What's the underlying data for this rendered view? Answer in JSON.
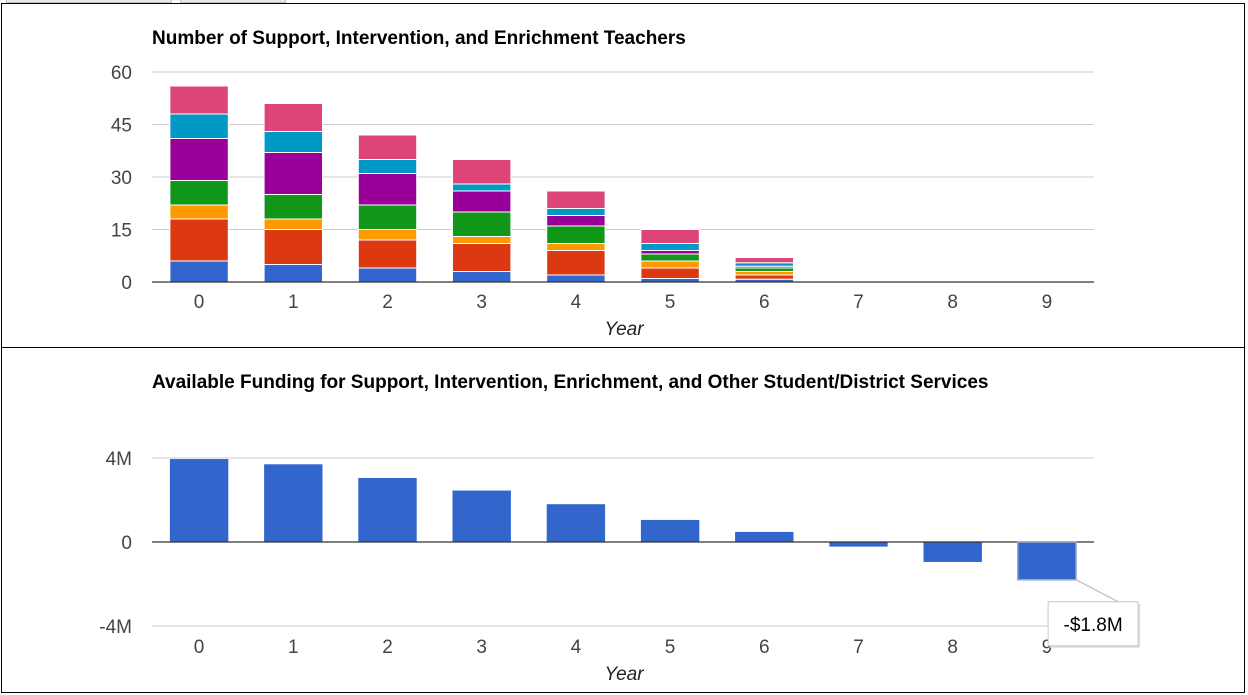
{
  "chart_data": [
    {
      "type": "bar",
      "stacked": true,
      "title": "Number of Support, Intervention, and Enrichment Teachers",
      "xlabel": "Year",
      "ylabel": "",
      "categories": [
        "0",
        "1",
        "2",
        "3",
        "4",
        "5",
        "6",
        "7",
        "8",
        "9"
      ],
      "y_ticks": [
        "0",
        "15",
        "30",
        "45",
        "60"
      ],
      "ylim": [
        0,
        60
      ],
      "grid": true,
      "legend": "none",
      "series": [
        {
          "color": "#3366cc",
          "values": [
            6,
            5,
            4,
            3,
            2,
            1,
            0.8,
            0,
            0,
            0
          ]
        },
        {
          "color": "#dc3912",
          "values": [
            12,
            10,
            8,
            8,
            7,
            3,
            1.2,
            0,
            0,
            0
          ]
        },
        {
          "color": "#ff9900",
          "values": [
            4,
            3,
            3,
            2,
            2,
            2,
            1,
            0,
            0,
            0
          ]
        },
        {
          "color": "#109618",
          "values": [
            7,
            7,
            7,
            7,
            5,
            2,
            1,
            0,
            0,
            0
          ]
        },
        {
          "color": "#990099",
          "values": [
            12,
            12,
            9,
            6,
            3,
            1,
            0.5,
            0,
            0,
            0
          ]
        },
        {
          "color": "#0099c6",
          "values": [
            7,
            6,
            4,
            2,
            2,
            2,
            1,
            0,
            0,
            0
          ]
        },
        {
          "color": "#dd4477",
          "values": [
            8,
            8,
            7,
            7,
            5,
            4,
            1.5,
            0,
            0,
            0
          ]
        }
      ]
    },
    {
      "type": "bar",
      "title": "Available Funding for Support, Intervention, Enrichment, and Other Student/District Services",
      "xlabel": "Year",
      "ylabel": "",
      "categories": [
        "0",
        "1",
        "2",
        "3",
        "4",
        "5",
        "6",
        "7",
        "8",
        "9"
      ],
      "y_ticks": [
        "-4M",
        "0",
        "4M"
      ],
      "ylim": [
        -4000000,
        4000000
      ],
      "grid": true,
      "legend": "none",
      "color": "#3366cc",
      "values": [
        3950000,
        3700000,
        3050000,
        2450000,
        1800000,
        1050000,
        480000,
        -220000,
        -950000,
        -1800000
      ],
      "tooltip": {
        "category_index": 9,
        "label": "-$1.8M"
      }
    }
  ]
}
